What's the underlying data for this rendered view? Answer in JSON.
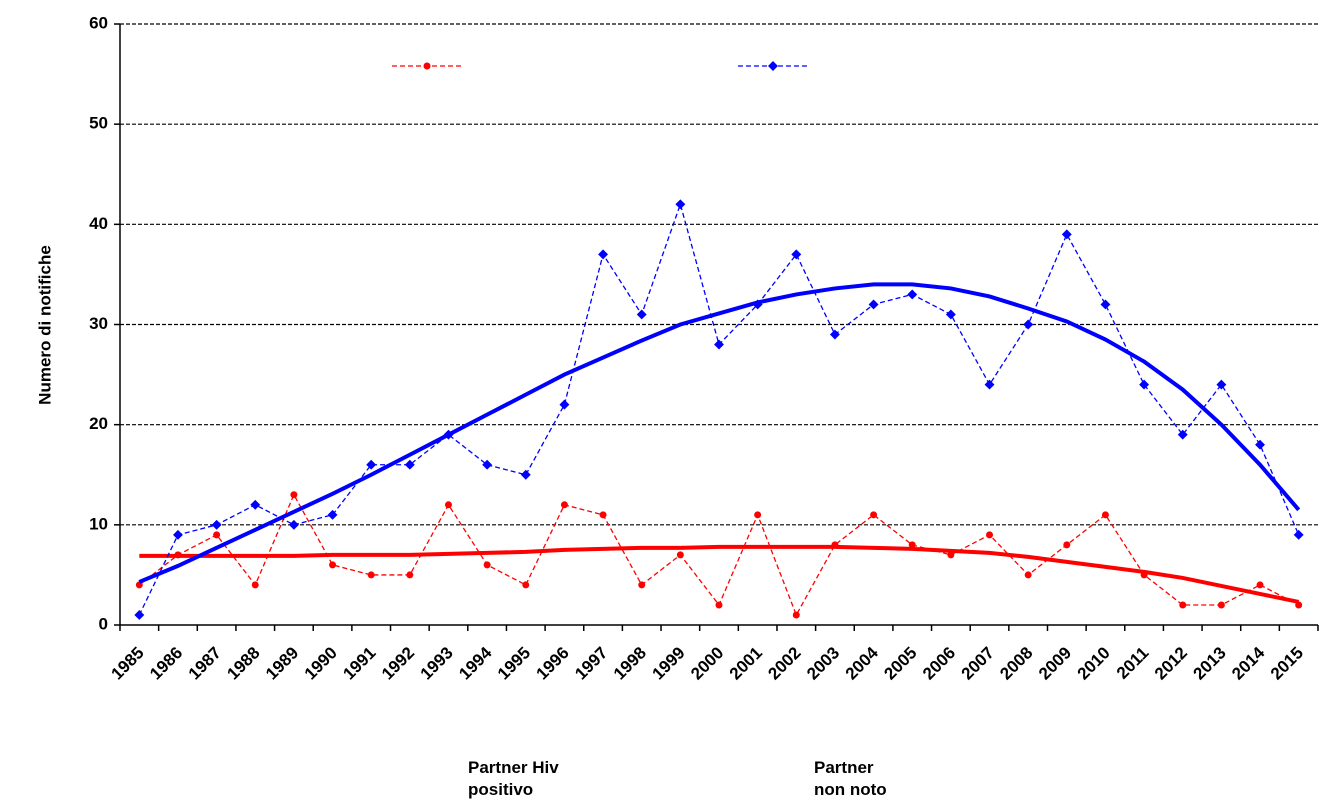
{
  "chart_data": {
    "type": "line",
    "y_label": "Numero di notifiche",
    "categories": [
      "1985",
      "1986",
      "1987",
      "1988",
      "1989",
      "1990",
      "1991",
      "1992",
      "1993",
      "1994",
      "1995",
      "1996",
      "1997",
      "1998",
      "1999",
      "2000",
      "2001",
      "2002",
      "2003",
      "2004",
      "2005",
      "2006",
      "2007",
      "2008",
      "2009",
      "2010",
      "2011",
      "2012",
      "2013",
      "2014",
      "2015"
    ],
    "series": [
      {
        "name": "Partner Hiv positivo",
        "color": "#ff0000",
        "values": [
          4,
          7,
          9,
          4,
          13,
          6,
          5,
          5,
          12,
          6,
          4,
          12,
          11,
          4,
          7,
          2,
          11,
          1,
          8,
          11,
          8,
          7,
          9,
          5,
          8,
          11,
          5,
          2,
          2,
          4,
          2
        ],
        "trend": [
          6.9,
          6.9,
          6.9,
          6.9,
          6.9,
          7.0,
          7.0,
          7.0,
          7.1,
          7.2,
          7.3,
          7.5,
          7.6,
          7.7,
          7.7,
          7.8,
          7.8,
          7.8,
          7.8,
          7.7,
          7.6,
          7.4,
          7.2,
          6.8,
          6.3,
          5.8,
          5.3,
          4.7,
          3.9,
          3.1,
          2.3
        ]
      },
      {
        "name": "Partner non noto",
        "color": "#0000ff",
        "values": [
          1,
          9,
          10,
          12,
          10,
          11,
          16,
          16,
          19,
          16,
          15,
          22,
          37,
          31,
          42,
          28,
          32,
          37,
          29,
          32,
          33,
          31,
          24,
          30,
          39,
          32,
          24,
          19,
          24,
          18,
          9
        ],
        "trend": [
          4.3,
          5.9,
          7.7,
          9.5,
          11.3,
          13.1,
          15.0,
          17.0,
          19.0,
          21.0,
          23.0,
          25.0,
          26.7,
          28.4,
          30.0,
          31.1,
          32.2,
          33.0,
          33.6,
          34.0,
          34.0,
          33.6,
          32.8,
          31.6,
          30.3,
          28.5,
          26.3,
          23.5,
          20.0,
          16.0,
          11.5
        ]
      }
    ],
    "ylim": [
      0,
      60
    ],
    "yticks": [
      0,
      10,
      20,
      30,
      40,
      50,
      60
    ],
    "grid": true
  }
}
